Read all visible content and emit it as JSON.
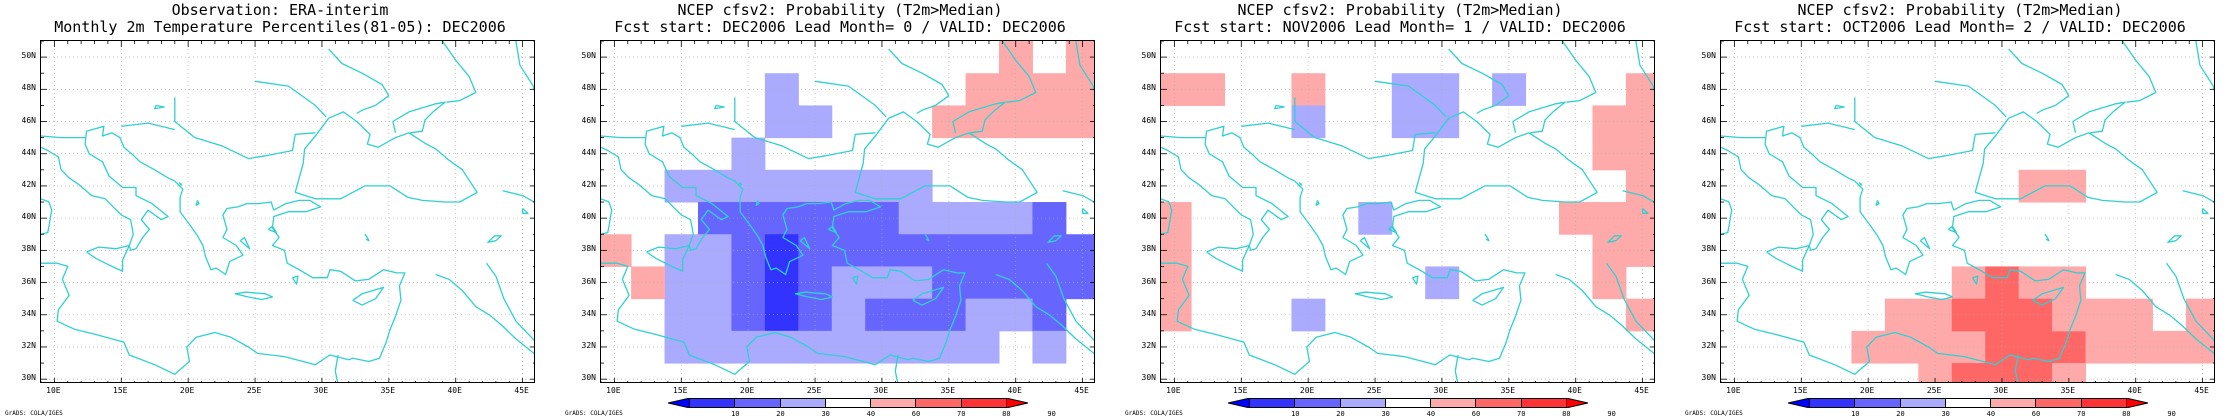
{
  "legend": {
    "bins": [
      {
        "from": 0,
        "to": 10,
        "color": "#0000ff"
      },
      {
        "from": 10,
        "to": 20,
        "color": "#3333ff"
      },
      {
        "from": 20,
        "to": 30,
        "color": "#6666ff"
      },
      {
        "from": 30,
        "to": 40,
        "color": "#aaaaff"
      },
      {
        "from": 40,
        "to": 60,
        "color": "#ffffff"
      },
      {
        "from": 60,
        "to": 70,
        "color": "#ffaaaa"
      },
      {
        "from": 70,
        "to": 80,
        "color": "#ff6666"
      },
      {
        "from": 80,
        "to": 90,
        "color": "#ff3333"
      },
      {
        "from": 90,
        "to": 100,
        "color": "#ff0000"
      }
    ],
    "ticks": [
      "10",
      "20",
      "30",
      "40",
      "60",
      "70",
      "80",
      "90"
    ]
  },
  "map": {
    "lon_labels": [
      "10E",
      "15E",
      "20E",
      "25E",
      "30E",
      "35E",
      "40E",
      "45E"
    ],
    "lat_labels": [
      "50N",
      "48N",
      "46N",
      "44N",
      "42N",
      "40N",
      "38N",
      "36N",
      "34N",
      "32N",
      "30N"
    ],
    "coast_color": "#30d0d0",
    "grid_color": "#aaaaaa"
  },
  "credit": "GrADS: COLA/IGES",
  "panels": [
    {
      "title_lines": [
        "Observation: ERA-interim",
        "Monthly 2m Temperature Percentiles(81-05): DEC2006"
      ],
      "has_colorbar": false,
      "cells": []
    },
    {
      "title_lines": [
        "NCEP cfsv2: Probability (T2m>Median)",
        "Fcst start: DEC2006   Lead Month= 0 / VALID: DEC2006"
      ],
      "has_colorbar": true,
      "cells": [
        {
          "lon": 22.5,
          "lat": 46,
          "v": 35
        },
        {
          "lon": 22.5,
          "lat": 48,
          "v": 35
        },
        {
          "lon": 25,
          "lat": 46,
          "v": 35
        },
        {
          "lon": 15,
          "lat": 42,
          "v": 35
        },
        {
          "lon": 17.5,
          "lat": 42,
          "v": 35
        },
        {
          "lon": 20,
          "lat": 42,
          "v": 35
        },
        {
          "lon": 20,
          "lat": 44,
          "v": 35
        },
        {
          "lon": 22.5,
          "lat": 42,
          "v": 35
        },
        {
          "lon": 25,
          "lat": 42,
          "v": 35
        },
        {
          "lon": 27.5,
          "lat": 42,
          "v": 35
        },
        {
          "lon": 30,
          "lat": 42,
          "v": 35
        },
        {
          "lon": 32.5,
          "lat": 42,
          "v": 35
        },
        {
          "lon": 17.5,
          "lat": 40,
          "v": 25
        },
        {
          "lon": 20,
          "lat": 40,
          "v": 25
        },
        {
          "lon": 22.5,
          "lat": 40,
          "v": 25
        },
        {
          "lon": 25,
          "lat": 40,
          "v": 25
        },
        {
          "lon": 27.5,
          "lat": 40,
          "v": 25
        },
        {
          "lon": 30,
          "lat": 40,
          "v": 25
        },
        {
          "lon": 32.5,
          "lat": 40,
          "v": 35
        },
        {
          "lon": 35,
          "lat": 40,
          "v": 35
        },
        {
          "lon": 37.5,
          "lat": 40,
          "v": 35
        },
        {
          "lon": 40,
          "lat": 40,
          "v": 35
        },
        {
          "lon": 42.5,
          "lat": 40,
          "v": 25
        },
        {
          "lon": 15,
          "lat": 38,
          "v": 35
        },
        {
          "lon": 17.5,
          "lat": 38,
          "v": 35
        },
        {
          "lon": 20,
          "lat": 38,
          "v": 25
        },
        {
          "lon": 22.5,
          "lat": 38,
          "v": 15
        },
        {
          "lon": 25,
          "lat": 38,
          "v": 25
        },
        {
          "lon": 27.5,
          "lat": 38,
          "v": 25
        },
        {
          "lon": 30,
          "lat": 38,
          "v": 25
        },
        {
          "lon": 32.5,
          "lat": 38,
          "v": 25
        },
        {
          "lon": 35,
          "lat": 38,
          "v": 25
        },
        {
          "lon": 37.5,
          "lat": 38,
          "v": 25
        },
        {
          "lon": 40,
          "lat": 38,
          "v": 25
        },
        {
          "lon": 42.5,
          "lat": 38,
          "v": 25
        },
        {
          "lon": 45,
          "lat": 38,
          "v": 25
        },
        {
          "lon": 15,
          "lat": 36,
          "v": 35
        },
        {
          "lon": 17.5,
          "lat": 36,
          "v": 35
        },
        {
          "lon": 20,
          "lat": 36,
          "v": 25
        },
        {
          "lon": 22.5,
          "lat": 36,
          "v": 15
        },
        {
          "lon": 25,
          "lat": 36,
          "v": 25
        },
        {
          "lon": 27.5,
          "lat": 36,
          "v": 35
        },
        {
          "lon": 30,
          "lat": 36,
          "v": 35
        },
        {
          "lon": 32.5,
          "lat": 36,
          "v": 35
        },
        {
          "lon": 35,
          "lat": 36,
          "v": 25
        },
        {
          "lon": 37.5,
          "lat": 36,
          "v": 25
        },
        {
          "lon": 40,
          "lat": 36,
          "v": 25
        },
        {
          "lon": 42.5,
          "lat": 36,
          "v": 25
        },
        {
          "lon": 45,
          "lat": 36,
          "v": 25
        },
        {
          "lon": 15,
          "lat": 34,
          "v": 35
        },
        {
          "lon": 17.5,
          "lat": 34,
          "v": 35
        },
        {
          "lon": 20,
          "lat": 34,
          "v": 25
        },
        {
          "lon": 22.5,
          "lat": 34,
          "v": 15
        },
        {
          "lon": 25,
          "lat": 34,
          "v": 25
        },
        {
          "lon": 27.5,
          "lat": 34,
          "v": 35
        },
        {
          "lon": 30,
          "lat": 34,
          "v": 25
        },
        {
          "lon": 32.5,
          "lat": 34,
          "v": 25
        },
        {
          "lon": 35,
          "lat": 34,
          "v": 25
        },
        {
          "lon": 37.5,
          "lat": 34,
          "v": 35
        },
        {
          "lon": 40,
          "lat": 34,
          "v": 35
        },
        {
          "lon": 42.5,
          "lat": 34,
          "v": 25
        },
        {
          "lon": 15,
          "lat": 32,
          "v": 35
        },
        {
          "lon": 17.5,
          "lat": 32,
          "v": 35
        },
        {
          "lon": 20,
          "lat": 32,
          "v": 35
        },
        {
          "lon": 22.5,
          "lat": 32,
          "v": 35
        },
        {
          "lon": 25,
          "lat": 32,
          "v": 35
        },
        {
          "lon": 27.5,
          "lat": 32,
          "v": 35
        },
        {
          "lon": 30,
          "lat": 32,
          "v": 35
        },
        {
          "lon": 32.5,
          "lat": 32,
          "v": 35
        },
        {
          "lon": 35,
          "lat": 32,
          "v": 35
        },
        {
          "lon": 37.5,
          "lat": 32,
          "v": 35
        },
        {
          "lon": 42.5,
          "lat": 32,
          "v": 35
        },
        {
          "lon": 10,
          "lat": 38,
          "v": 65
        },
        {
          "lon": 12.5,
          "lat": 36,
          "v": 65
        },
        {
          "lon": 37.5,
          "lat": 46,
          "v": 65
        },
        {
          "lon": 40,
          "lat": 46,
          "v": 65
        },
        {
          "lon": 42.5,
          "lat": 46,
          "v": 65
        },
        {
          "lon": 45,
          "lat": 46,
          "v": 65
        },
        {
          "lon": 40,
          "lat": 48,
          "v": 65
        },
        {
          "lon": 45,
          "lat": 48,
          "v": 65
        },
        {
          "lon": 40,
          "lat": 50,
          "v": 65
        },
        {
          "lon": 45,
          "lat": 50,
          "v": 65
        },
        {
          "lon": 42.5,
          "lat": 48,
          "v": 65
        },
        {
          "lon": 37.5,
          "lat": 48,
          "v": 65
        },
        {
          "lon": 35,
          "lat": 46,
          "v": 65
        }
      ]
    },
    {
      "title_lines": [
        "NCEP cfsv2: Probability (T2m>Median)",
        "Fcst start: NOV2006   Lead Month= 1 / VALID: DEC2006"
      ],
      "has_colorbar": true,
      "cells": [
        {
          "lon": 10,
          "lat": 48,
          "v": 65
        },
        {
          "lon": 12.5,
          "lat": 48,
          "v": 65
        },
        {
          "lon": 20,
          "lat": 48,
          "v": 65
        },
        {
          "lon": 20,
          "lat": 46,
          "v": 35
        },
        {
          "lon": 27.5,
          "lat": 48,
          "v": 35
        },
        {
          "lon": 30,
          "lat": 48,
          "v": 35
        },
        {
          "lon": 27.5,
          "lat": 46,
          "v": 35
        },
        {
          "lon": 30,
          "lat": 46,
          "v": 35
        },
        {
          "lon": 35,
          "lat": 48,
          "v": 35
        },
        {
          "lon": 42.5,
          "lat": 46,
          "v": 65
        },
        {
          "lon": 45,
          "lat": 46,
          "v": 65
        },
        {
          "lon": 42.5,
          "lat": 44,
          "v": 65
        },
        {
          "lon": 45,
          "lat": 44,
          "v": 65
        },
        {
          "lon": 45,
          "lat": 42,
          "v": 65
        },
        {
          "lon": 45,
          "lat": 48,
          "v": 65
        },
        {
          "lon": 40,
          "lat": 40,
          "v": 65
        },
        {
          "lon": 42.5,
          "lat": 40,
          "v": 65
        },
        {
          "lon": 45,
          "lat": 40,
          "v": 65
        },
        {
          "lon": 42.5,
          "lat": 38,
          "v": 65
        },
        {
          "lon": 45,
          "lat": 38,
          "v": 65
        },
        {
          "lon": 42.5,
          "lat": 36,
          "v": 65
        },
        {
          "lon": 45,
          "lat": 34,
          "v": 65
        },
        {
          "lon": 10,
          "lat": 40,
          "v": 65
        },
        {
          "lon": 10,
          "lat": 38,
          "v": 65
        },
        {
          "lon": 10,
          "lat": 36,
          "v": 65
        },
        {
          "lon": 10,
          "lat": 34,
          "v": 65
        },
        {
          "lon": 25,
          "lat": 40,
          "v": 35
        },
        {
          "lon": 30,
          "lat": 36,
          "v": 35
        },
        {
          "lon": 20,
          "lat": 34,
          "v": 35
        }
      ]
    },
    {
      "title_lines": [
        "NCEP cfsv2: Probability (T2m>Median)",
        "Fcst start: OCT2006   Lead Month= 2 / VALID: DEC2006"
      ],
      "has_colorbar": true,
      "cells": [
        {
          "lon": 32.5,
          "lat": 42,
          "v": 65
        },
        {
          "lon": 35,
          "lat": 42,
          "v": 65
        },
        {
          "lon": 22.5,
          "lat": 34,
          "v": 65
        },
        {
          "lon": 25,
          "lat": 34,
          "v": 65
        },
        {
          "lon": 27.5,
          "lat": 36,
          "v": 65
        },
        {
          "lon": 30,
          "lat": 36,
          "v": 75
        },
        {
          "lon": 32.5,
          "lat": 36,
          "v": 65
        },
        {
          "lon": 35,
          "lat": 36,
          "v": 65
        },
        {
          "lon": 20,
          "lat": 32,
          "v": 65
        },
        {
          "lon": 22.5,
          "lat": 32,
          "v": 65
        },
        {
          "lon": 25,
          "lat": 32,
          "v": 65
        },
        {
          "lon": 27.5,
          "lat": 32,
          "v": 65
        },
        {
          "lon": 30,
          "lat": 32,
          "v": 75
        },
        {
          "lon": 32.5,
          "lat": 32,
          "v": 75
        },
        {
          "lon": 35,
          "lat": 32,
          "v": 75
        },
        {
          "lon": 37.5,
          "lat": 32,
          "v": 65
        },
        {
          "lon": 40,
          "lat": 32,
          "v": 65
        },
        {
          "lon": 27.5,
          "lat": 34,
          "v": 75
        },
        {
          "lon": 30,
          "lat": 34,
          "v": 75
        },
        {
          "lon": 32.5,
          "lat": 34,
          "v": 75
        },
        {
          "lon": 35,
          "lat": 34,
          "v": 65
        },
        {
          "lon": 37.5,
          "lat": 34,
          "v": 65
        },
        {
          "lon": 40,
          "lat": 34,
          "v": 65
        },
        {
          "lon": 25,
          "lat": 30,
          "v": 65
        },
        {
          "lon": 27.5,
          "lat": 30,
          "v": 75
        },
        {
          "lon": 30,
          "lat": 30,
          "v": 75
        },
        {
          "lon": 32.5,
          "lat": 30,
          "v": 75
        },
        {
          "lon": 35,
          "lat": 30,
          "v": 65
        },
        {
          "lon": 45,
          "lat": 34,
          "v": 65
        },
        {
          "lon": 45,
          "lat": 32,
          "v": 65
        },
        {
          "lon": 42.5,
          "lat": 32,
          "v": 65
        }
      ]
    }
  ]
}
